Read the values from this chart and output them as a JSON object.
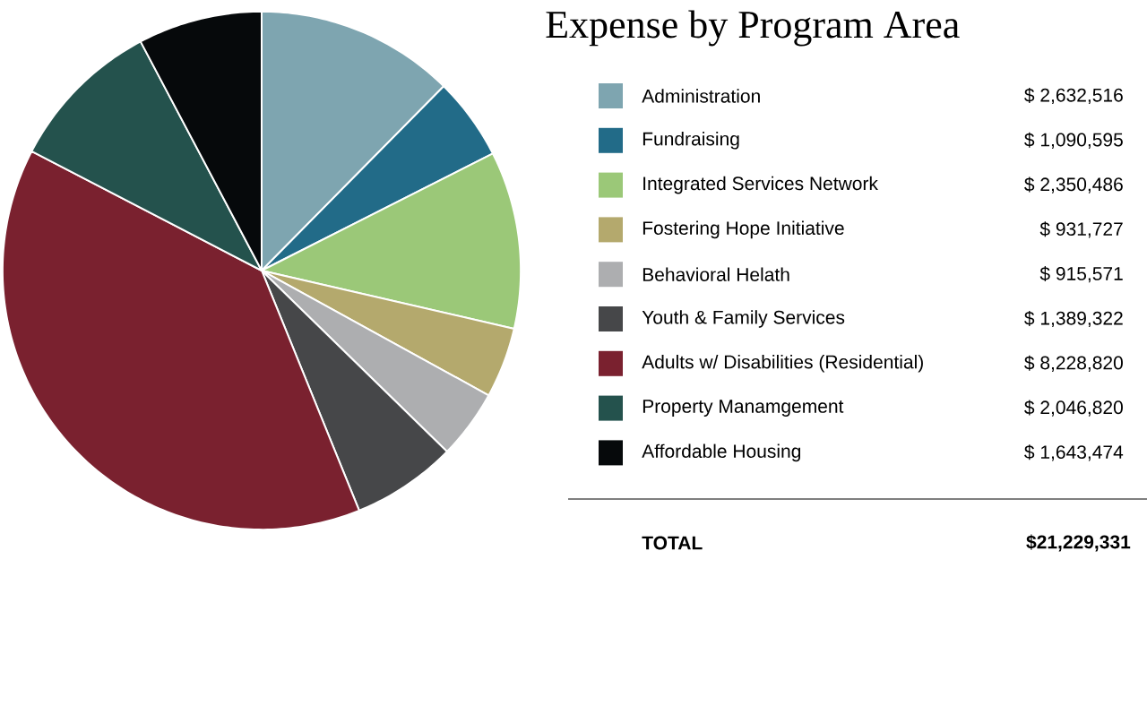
{
  "chart_data": {
    "type": "pie",
    "title": "Expense by Program Area",
    "categories": [
      "Administration",
      "Fundraising",
      "Integrated Services Network",
      "Fostering Hope Initiative",
      "Behavioral Helath",
      "Youth & Family Services",
      "Adults w/ Disabilities (Residential)",
      "Property Manamgement",
      "Affordable Housing"
    ],
    "values": [
      2632516,
      1090595,
      2350486,
      931727,
      915571,
      1389322,
      8228820,
      2046820,
      1643474
    ],
    "value_labels": [
      "$ 2,632,516",
      "$ 1,090,595",
      "$ 2,350,486",
      "$ 931,727",
      "$ 915,571",
      "$ 1,389,322",
      "$ 8,228,820",
      "$ 2,046,820",
      "$ 1,643,474"
    ],
    "colors": [
      "#7ea5b0",
      "#226b88",
      "#9bc878",
      "#b4a96d",
      "#adaeb0",
      "#464749",
      "#7a212f",
      "#24524d",
      "#06090b"
    ],
    "legend": "right",
    "annotations": [
      "TOTAL",
      "$21,229,331"
    ]
  }
}
